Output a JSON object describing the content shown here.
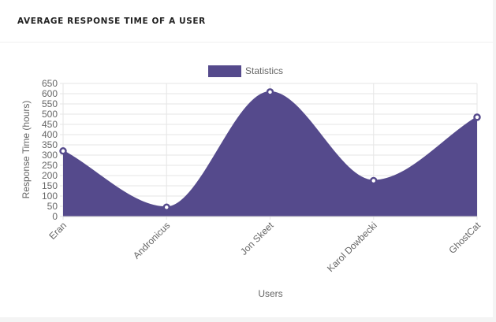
{
  "card": {
    "title": "AVERAGE RESPONSE TIME OF A USER"
  },
  "colors": {
    "area_fill": "#554a8c",
    "point_fill": "#ffffff",
    "point_stroke": "#554a8c",
    "grid": "#e6e6e6",
    "text": "#666666"
  },
  "chart_data": {
    "type": "area",
    "categories": [
      "Eran",
      "Andronicus",
      "Jon Skeet",
      "Karol Dowbecki",
      "GhostCat"
    ],
    "series": [
      {
        "name": "Statistics",
        "values": [
          320,
          45,
          608,
          175,
          485
        ]
      }
    ],
    "xlabel": "Users",
    "ylabel": "Response Time (hours)",
    "ylim": [
      0,
      650
    ],
    "yticks": [
      "0",
      "50",
      "100",
      "150",
      "200",
      "250",
      "300",
      "350",
      "400",
      "450",
      "500",
      "550",
      "600",
      "650"
    ],
    "grid": true,
    "legend": "top-center"
  }
}
